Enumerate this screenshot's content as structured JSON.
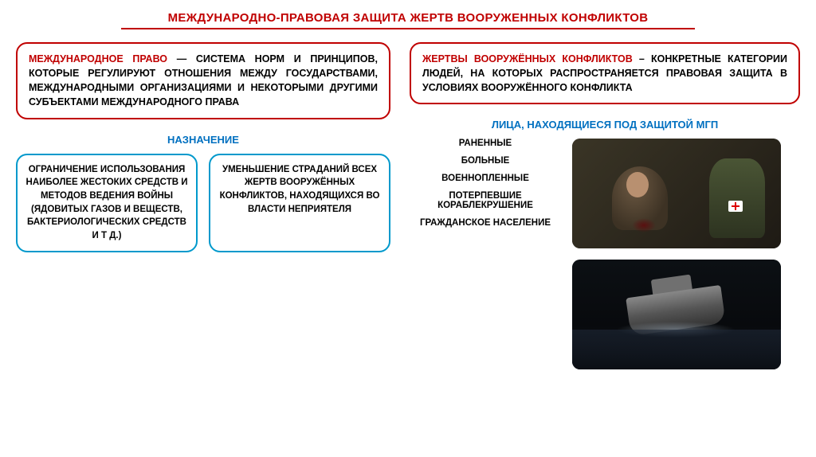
{
  "title": "МЕЖДУНАРОДНО-ПРАВОВАЯ ЗАЩИТА ЖЕРТВ ВООРУЖЕННЫХ КОНФЛИКТОВ",
  "left": {
    "definition": {
      "term": "МЕЖДУНАРОДНОЕ ПРАВО",
      "body": " — СИСТЕМА НОРМ И ПРИНЦИПОВ, КОТОРЫЕ РЕГУЛИРУЮТ ОТНОШЕНИЯ МЕЖДУ ГОСУДАРСТВАМИ, МЕЖДУНАРОДНЫМИ ОРГАНИЗАЦИЯМИ И НЕКОТОРЫМИ ДРУГИМИ СУБЪЕКТАМИ МЕЖДУНАРОДНОГО ПРАВА"
    },
    "section_label": "НАЗНАЧЕНИЕ",
    "purpose1": "ОГРАНИЧЕНИЕ ИСПОЛЬЗОВАНИЯ НАИБОЛЕЕ ЖЕСТОКИХ СРЕДСТВ И МЕТОДОВ ВЕДЕНИЯ ВОЙНЫ (ЯДОВИТЫХ ГАЗОВ И ВЕЩЕСТВ, БАКТЕРИОЛОГИЧЕСКИХ СРЕДСТВ И Т Д.)",
    "purpose2": "УМЕНЬШЕНИЕ СТРАДАНИЙ ВСЕХ ЖЕРТВ ВООРУЖЁННЫХ КОНФЛИКТОВ, НАХОДЯЩИХСЯ ВО ВЛАСТИ НЕПРИЯТЕЛЯ"
  },
  "right": {
    "definition": {
      "term": "ЖЕРТВЫ ВООРУЖЁННЫХ КОНФЛИКТОВ",
      "body": " – КОНКРЕТНЫЕ КАТЕГОРИИ ЛЮДЕЙ, НА КОТОРЫХ РАСПРОСТРАНЯЕТСЯ ПРАВОВАЯ ЗАЩИТА В УСЛОВИЯХ ВООРУЖЁННОГО КОНФЛИКТА"
    },
    "section_label": "ЛИЦА, НАХОДЯЩИЕСЯ ПОД ЗАЩИТОЙ МГП",
    "protected": [
      "РАНЕННЫЕ",
      "БОЛЬНЫЕ",
      "ВОЕННОПЛЕННЫЕ",
      "ПОТЕРПЕВШИЕ КОРАБЛЕКРУШЕНИЕ",
      "ГРАЖДАНСКОЕ НАСЕЛЕНИЕ"
    ]
  },
  "colors": {
    "red": "#c00000",
    "blue_border": "#0099cc",
    "blue_text": "#0070c0",
    "bg": "#ffffff"
  }
}
